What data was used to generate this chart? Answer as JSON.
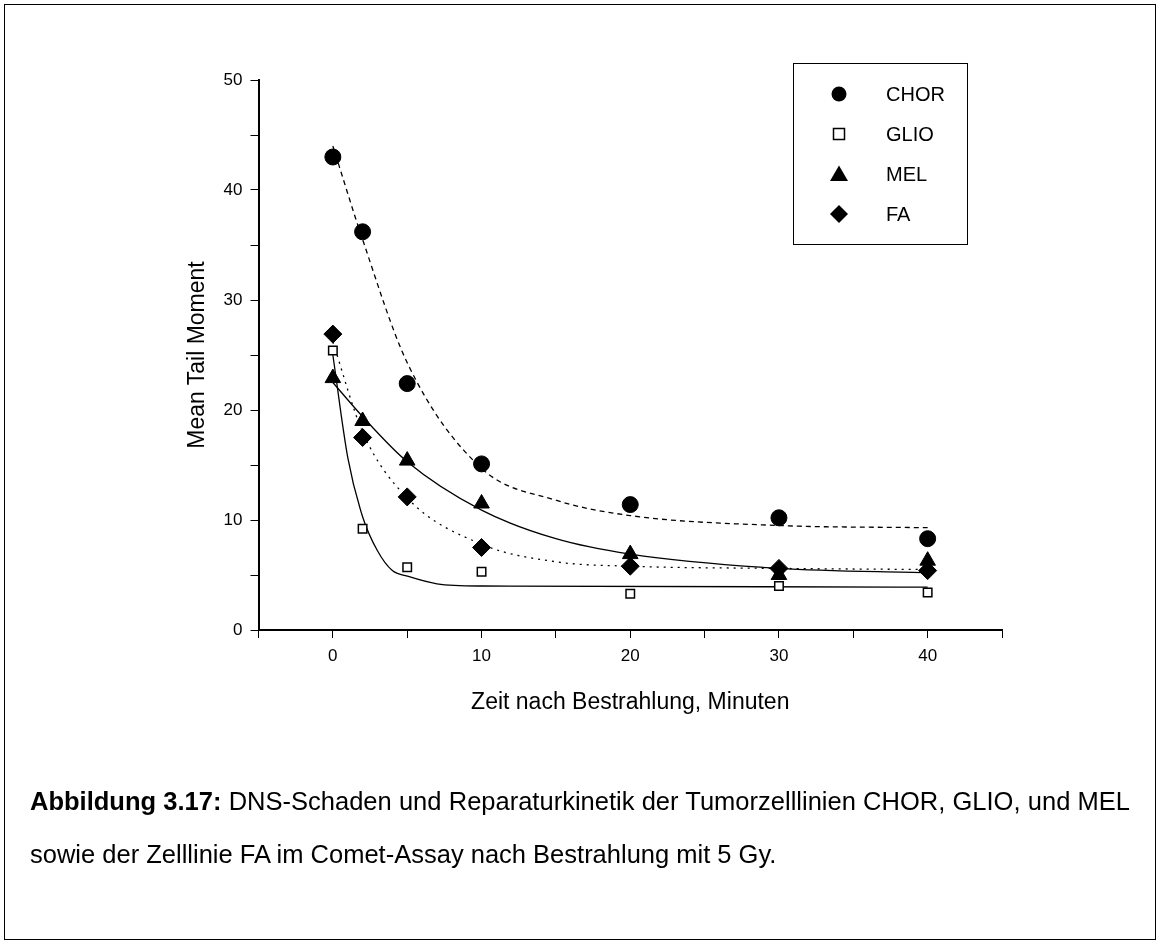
{
  "chart_data": {
    "type": "scatter",
    "xlabel": "Zeit nach Bestrahlung, Minuten",
    "ylabel": "Mean Tail Moment",
    "xlim": [
      -5,
      45
    ],
    "xticks": [
      {
        "value": -5,
        "label": null
      },
      0,
      {
        "value": 5,
        "label": null
      },
      10,
      {
        "value": 15,
        "label": null
      },
      20,
      {
        "value": 25,
        "label": null
      },
      30,
      {
        "value": 35,
        "label": null
      },
      40,
      {
        "value": 45,
        "label": null
      }
    ],
    "ylim": [
      0,
      50
    ],
    "yticks": [
      0,
      {
        "value": 5,
        "label": null
      },
      10,
      {
        "value": 15,
        "label": null
      },
      20,
      {
        "value": 25,
        "label": null
      },
      30,
      {
        "value": 35,
        "label": null
      },
      40,
      {
        "value": 45,
        "label": null
      },
      50
    ],
    "grid": false,
    "legend": "top right",
    "series": [
      {
        "name": "CHOR",
        "type": "scatter",
        "marker": "circle",
        "color": "#000000",
        "x": [
          0,
          2,
          5,
          10,
          20,
          30,
          40
        ],
        "values": [
          43.0,
          36.2,
          22.4,
          15.1,
          11.4,
          10.2,
          8.3
        ]
      },
      {
        "name": "GLIO",
        "type": "scatter",
        "marker": "square",
        "color": "#000000",
        "x": [
          0,
          2,
          5,
          10,
          20,
          30,
          40
        ],
        "values": [
          25.4,
          9.2,
          5.7,
          5.3,
          3.3,
          4.0,
          3.4
        ]
      },
      {
        "name": "MEL",
        "type": "scatter",
        "marker": "triangle",
        "color": "#000000",
        "x": [
          0,
          2,
          5,
          10,
          20,
          30,
          40
        ],
        "values": [
          22.9,
          19.0,
          15.4,
          11.5,
          6.9,
          5.0,
          6.3
        ]
      },
      {
        "name": "FA",
        "type": "scatter",
        "marker": "diamond",
        "color": "#000000",
        "x": [
          0,
          2,
          5,
          10,
          20,
          30,
          40
        ],
        "values": [
          26.9,
          17.5,
          12.1,
          7.5,
          5.8,
          5.6,
          5.4
        ]
      },
      {
        "type": "line",
        "line_style": "dashed",
        "marker": "none",
        "color": "#000000",
        "x": [
          0,
          2,
          5,
          10,
          15,
          20,
          30,
          40
        ],
        "values": [
          44.0,
          35.5,
          24.3,
          14.7,
          11.8,
          10.4,
          9.5,
          9.3
        ]
      },
      {
        "type": "line",
        "line_style": "solid",
        "marker": "none",
        "color": "#000000",
        "x": [
          0,
          1,
          2,
          3,
          4,
          5,
          7,
          10,
          40
        ],
        "values": [
          25.0,
          15.7,
          10.3,
          7.2,
          5.4,
          4.9,
          4.2,
          4.0,
          3.9
        ]
      },
      {
        "type": "line",
        "line_style": "solid",
        "marker": "none",
        "color": "#000000",
        "x": [
          0,
          2,
          5,
          10,
          15,
          20,
          30,
          40
        ],
        "values": [
          22.5,
          19.4,
          15.3,
          10.9,
          8.3,
          6.9,
          5.6,
          5.2
        ]
      },
      {
        "type": "line",
        "line_style": "dotted",
        "marker": "none",
        "color": "#000000",
        "x": [
          0,
          2,
          5,
          10,
          15,
          20,
          30,
          40
        ],
        "values": [
          26.2,
          18.0,
          12.0,
          7.8,
          6.2,
          5.8,
          5.6,
          5.5
        ]
      }
    ],
    "annotations": [
      "Abbildung 3.17:",
      "DNS-Schaden und Reparaturkinetik der Tumorzelllinien CHOR, GLIO, und MEL sowie der Zelllinie FA im Comet-Assay nach Bestrahlung mit 5 Gy."
    ]
  }
}
